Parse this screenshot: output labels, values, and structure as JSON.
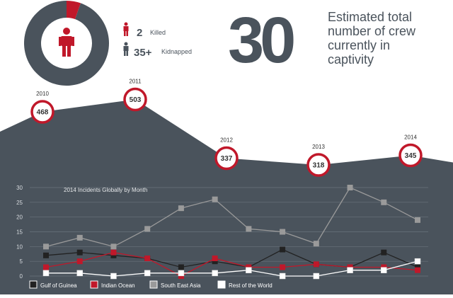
{
  "infographic": {
    "stats": {
      "killed": {
        "value": "2",
        "label": "Killed"
      },
      "kidnapped": {
        "value": "35+",
        "label": "Kidnapped"
      }
    },
    "donut": {
      "killed_count": 2,
      "kidnapped_count": 35
    },
    "big_number": "30",
    "big_caption": [
      "Estimated total",
      "number of crew",
      "currently in",
      "captivity"
    ],
    "colors": {
      "dark": "#4a535c",
      "red": "#c0182a",
      "light_gray": "#9a9a9a",
      "black": "#222222",
      "white": "#ffffff"
    }
  },
  "chart_data": [
    {
      "type": "area",
      "categories": [
        "2010",
        "2011",
        "2012",
        "2013",
        "2014"
      ],
      "values": [
        468,
        503,
        337,
        318,
        345
      ]
    },
    {
      "type": "line",
      "title": "2014 Incidents Globally by Month",
      "x": [
        1,
        2,
        3,
        4,
        5,
        6,
        7,
        8,
        9,
        10,
        11,
        12
      ],
      "ylim": [
        0,
        30
      ],
      "yticks": [
        0,
        5,
        10,
        15,
        20,
        25,
        30
      ],
      "grid": true,
      "legend": "bottom",
      "series": [
        {
          "name": "Gulf of Guinea",
          "color": "#222222",
          "values": [
            7,
            8,
            7,
            6,
            3,
            5,
            3,
            9,
            4,
            3,
            8,
            3
          ]
        },
        {
          "name": "Indian Ocean",
          "color": "#c0182a",
          "values": [
            3,
            5,
            8,
            6,
            0,
            6,
            3,
            3,
            4,
            3,
            3,
            2
          ]
        },
        {
          "name": "South East Asia",
          "color": "#9a9a9a",
          "values": [
            10,
            13,
            10,
            16,
            23,
            26,
            16,
            15,
            11,
            30,
            25,
            19
          ]
        },
        {
          "name": "Rest of the World",
          "color": "#ffffff",
          "values": [
            1,
            1,
            0,
            1,
            1,
            1,
            2,
            0,
            0,
            2,
            2,
            5
          ]
        }
      ]
    }
  ]
}
